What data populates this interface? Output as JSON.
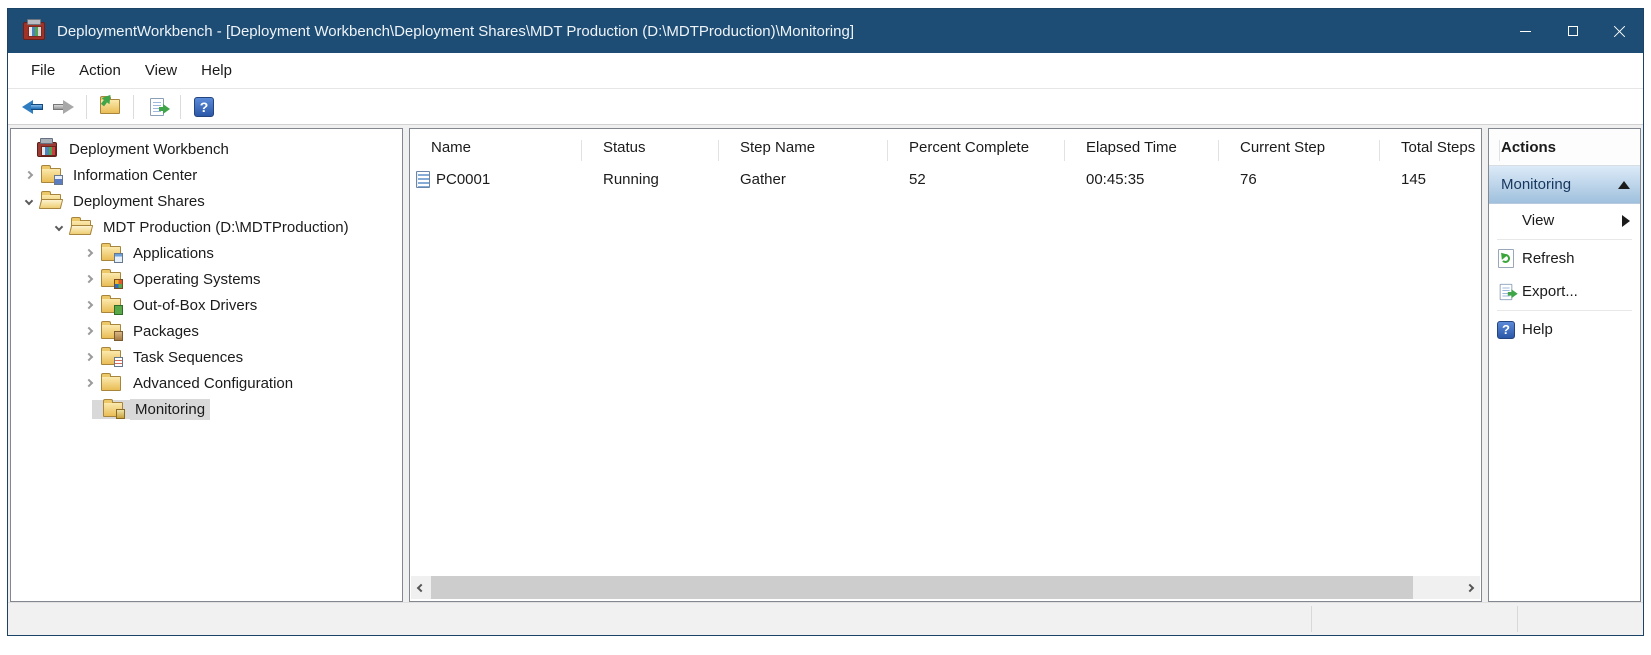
{
  "titlebar": {
    "title": "DeploymentWorkbench - [Deployment Workbench\\Deployment Shares\\MDT Production (D:\\MDTProduction)\\Monitoring]",
    "app_icon": "mdt-toolbox-icon",
    "controls": [
      "minimize",
      "maximize",
      "close"
    ]
  },
  "menu": {
    "items": [
      "File",
      "Action",
      "View",
      "Help"
    ]
  },
  "toolbar": {
    "buttons": [
      {
        "name": "back",
        "enabled": true
      },
      {
        "name": "forward",
        "enabled": false
      },
      {
        "name": "up-one-level",
        "enabled": true
      },
      {
        "name": "export-list",
        "enabled": true
      },
      {
        "name": "help",
        "enabled": true
      }
    ],
    "help_glyph": "?"
  },
  "tree": {
    "items": [
      {
        "label": "Deployment Workbench",
        "level": 0,
        "expander": "none",
        "icon": "workbench",
        "selected": false
      },
      {
        "label": "Information Center",
        "level": 1,
        "expander": "collapsed",
        "icon": "folder-info",
        "selected": false
      },
      {
        "label": "Deployment Shares",
        "level": 1,
        "expander": "expanded",
        "icon": "folder-open",
        "selected": false
      },
      {
        "label": "MDT Production (D:\\MDTProduction)",
        "level": 2,
        "expander": "expanded",
        "icon": "folder-open",
        "selected": false
      },
      {
        "label": "Applications",
        "level": 3,
        "expander": "collapsed",
        "icon": "folder-applications",
        "selected": false
      },
      {
        "label": "Operating Systems",
        "level": 3,
        "expander": "collapsed",
        "icon": "folder-os",
        "selected": false
      },
      {
        "label": "Out-of-Box Drivers",
        "level": 3,
        "expander": "collapsed",
        "icon": "folder-drivers",
        "selected": false
      },
      {
        "label": "Packages",
        "level": 3,
        "expander": "collapsed",
        "icon": "folder-packages",
        "selected": false
      },
      {
        "label": "Task Sequences",
        "level": 3,
        "expander": "collapsed",
        "icon": "folder-tasks",
        "selected": false
      },
      {
        "label": "Advanced Configuration",
        "level": 3,
        "expander": "collapsed",
        "icon": "folder-plain",
        "selected": false
      },
      {
        "label": "Monitoring",
        "level": 3,
        "expander": "none",
        "icon": "folder-monitoring",
        "selected": true
      }
    ]
  },
  "listview": {
    "columns": [
      "Name",
      "Status",
      "Step Name",
      "Percent Complete",
      "Elapsed Time",
      "Current Step",
      "Total Steps"
    ],
    "rows": [
      {
        "icon": "computer-item-icon",
        "cells": [
          "PC0001",
          "Running",
          "Gather",
          "52",
          "00:45:35",
          "76",
          "145"
        ]
      }
    ]
  },
  "actions": {
    "title": "Actions",
    "group_header": "Monitoring",
    "group_state": "expanded",
    "items": [
      {
        "label": "View",
        "icon": "none",
        "submenu": true
      },
      {
        "label": "Refresh",
        "icon": "refresh",
        "submenu": false
      },
      {
        "label": "Export...",
        "icon": "export",
        "submenu": false
      },
      {
        "label": "Help",
        "icon": "help",
        "submenu": false
      }
    ]
  },
  "colors": {
    "titlebar": "#1d4d74",
    "selection_gray": "#d9d9d9",
    "actions_group_gradient_top": "#dceaf8",
    "actions_group_gradient_bottom": "#9fc0dd",
    "pane_border": "#828790"
  }
}
